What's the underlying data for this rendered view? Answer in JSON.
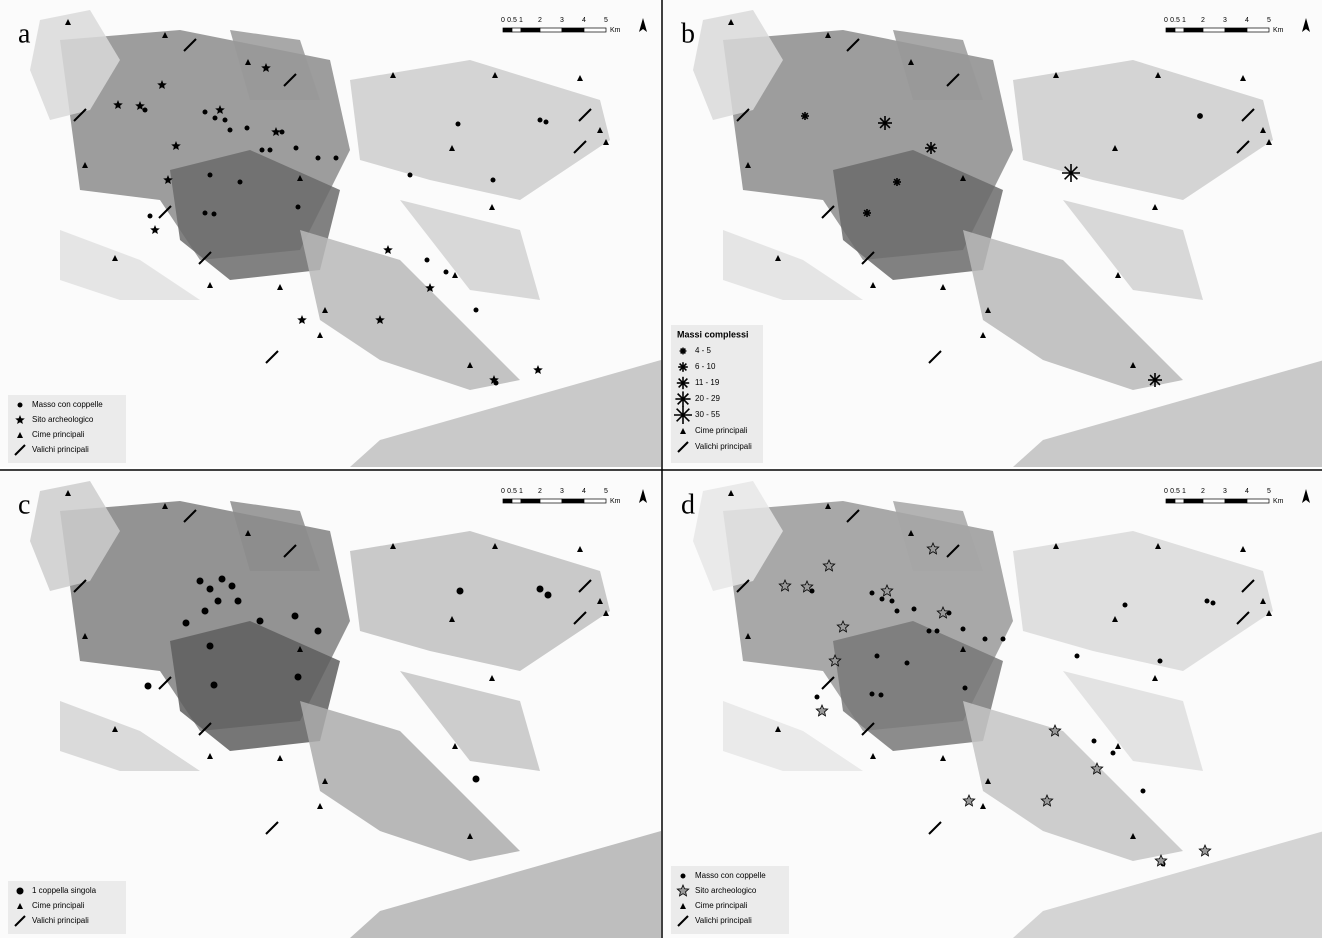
{
  "panels": [
    {
      "label": "a",
      "scale": {
        "ticks": [
          "0",
          "0.5",
          "1",
          "2",
          "3",
          "4",
          "5"
        ],
        "unit": "Km"
      },
      "legend": {
        "items": [
          "Masso con coppelle",
          "Sito archeologico",
          "Cime principali",
          "Valichi principali"
        ]
      }
    },
    {
      "label": "b",
      "scale": {
        "ticks": [
          "0",
          "0.5",
          "1",
          "2",
          "3",
          "4",
          "5"
        ],
        "unit": "Km"
      },
      "legend": {
        "title": "Massi complessi",
        "items": [
          "4 - 5",
          "6 - 10",
          "11 - 19",
          "20 - 29",
          "30 - 55",
          "Cime principali",
          "Valichi principali"
        ]
      }
    },
    {
      "label": "c",
      "scale": {
        "ticks": [
          "0",
          "0.5",
          "1",
          "2",
          "3",
          "4",
          "5"
        ],
        "unit": "Km"
      },
      "legend": {
        "items": [
          "1 coppella singola",
          "Cime principali",
          "Valichi principali"
        ]
      }
    },
    {
      "label": "d",
      "scale": {
        "ticks": [
          "0",
          "0.5",
          "1",
          "2",
          "3",
          "4",
          "5"
        ],
        "unit": "Km"
      },
      "legend": {
        "items": [
          "Masso con coppelle",
          "Sito archeologico",
          "Cime principali",
          "Valichi principali"
        ]
      }
    }
  ]
}
